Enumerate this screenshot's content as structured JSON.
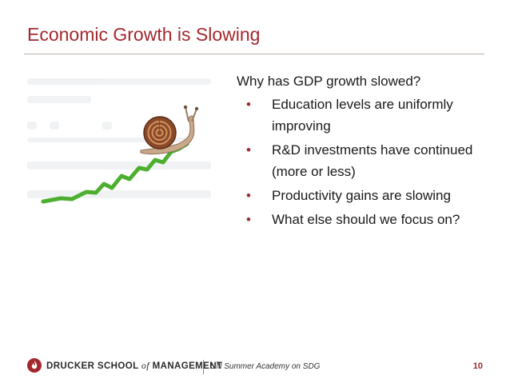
{
  "slide": {
    "title": "Economic Growth is Slowing",
    "question": "Why has GDP growth slowed?",
    "bullets": [
      "Education levels are uniformly improving",
      "R&D investments have continued (more or less)",
      "Productivity gains are slowing",
      "What else should we focus on?"
    ],
    "illustration_icon": "snail-on-growth-line-icon"
  },
  "footer": {
    "logo_main": "DRUCKER SCHOOL",
    "logo_of": "of",
    "logo_end": "MANAGEMENT",
    "label": "UN Summer Academy on SDG",
    "page_number": "10"
  },
  "colors": {
    "accent": "#a3282e",
    "growth_line": "#4caf2f",
    "text": "#1a1a1a"
  }
}
